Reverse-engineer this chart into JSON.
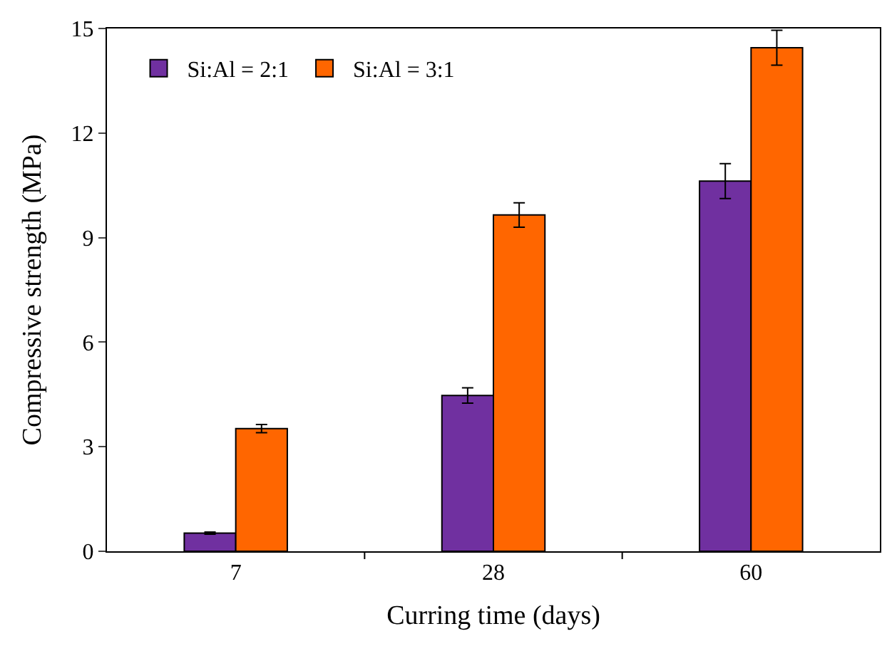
{
  "chart_data": {
    "type": "bar",
    "xlabel": "Curring time (days)",
    "ylabel": "Compressive strength (MPa)",
    "categories": [
      "7",
      "28",
      "60"
    ],
    "series": [
      {
        "name": "Si:Al = 2:1",
        "color": "#7030a0",
        "values": [
          0.52,
          4.47,
          10.62
        ],
        "errors": [
          0.03,
          0.22,
          0.5
        ]
      },
      {
        "name": "Si:Al = 3:1",
        "color": "#ff6600",
        "values": [
          3.52,
          9.65,
          14.45
        ],
        "errors": [
          0.12,
          0.35,
          0.5
        ]
      }
    ],
    "ylim": [
      0,
      15
    ],
    "yticks": [
      0,
      3,
      6,
      9,
      12,
      15
    ],
    "legend": "top left"
  }
}
